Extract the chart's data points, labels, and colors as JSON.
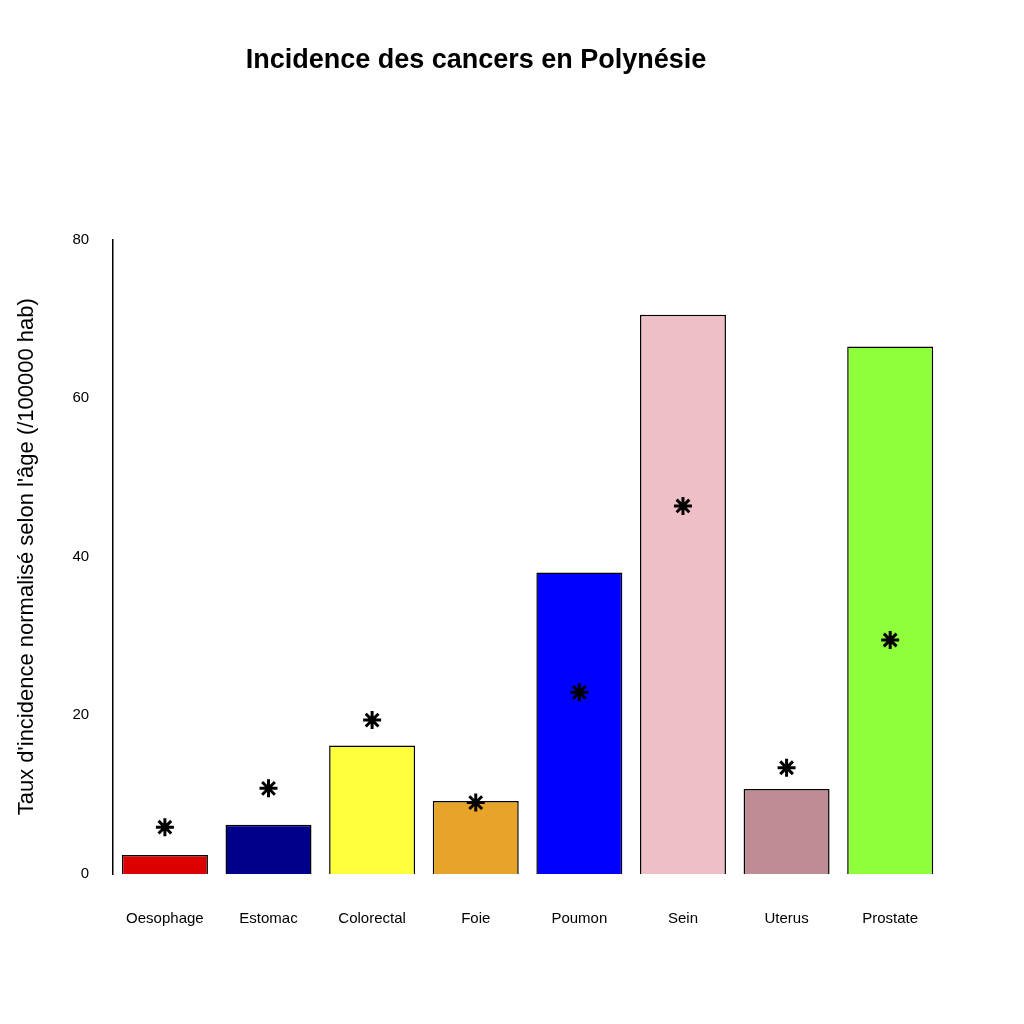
{
  "chart_data": {
    "type": "bar",
    "title": "Incidence des cancers en Polynésie",
    "ylabel": "Taux d'incidence normalisé selon l'âge (/100000 hab)",
    "categories": [
      "Oesophage",
      "Estomac",
      "Colorectal",
      "Foie",
      "Poumon",
      "Sein",
      "Uterus",
      "Prostate"
    ],
    "series": [
      {
        "colors": [
          "#dd0000",
          "#00008b",
          "#ffff3b",
          "#e8a32b",
          "#0000ff",
          "#eebfc7",
          "#bf8c96",
          "#8fff3b"
        ],
        "values": [
          2.4,
          6.2,
          16.2,
          9.2,
          38.0,
          70.5,
          10.7,
          66.5
        ]
      },
      {
        "type": "scatter",
        "color": "#000000",
        "marker": "cross",
        "x": [
          "Oesophage",
          "Estomac",
          "Colorectal",
          "Foie",
          "Poumon",
          "Sein",
          "Uterus",
          "Prostate"
        ],
        "values": [
          5.9,
          10.8,
          19.4,
          9.0,
          22.9,
          46.4,
          13.4,
          29.5
        ]
      }
    ],
    "ylim": [
      0,
      80
    ],
    "yticks": [
      0,
      20,
      40,
      60,
      80
    ],
    "grid": false,
    "legend": false
  }
}
